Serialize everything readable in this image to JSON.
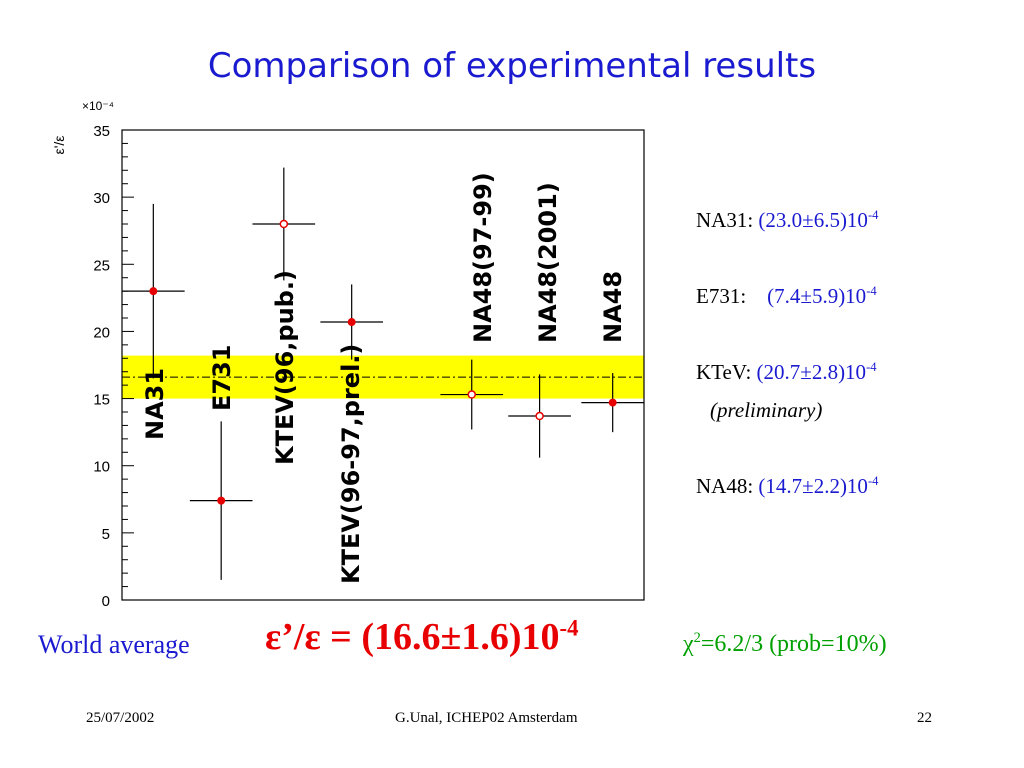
{
  "title": "Comparison of experimental results",
  "chart_data": {
    "type": "scatter",
    "ylabel": "ε'/ε",
    "y_scale_label": "×10⁻⁴",
    "ylim": [
      0,
      35
    ],
    "yticks": [
      0,
      5,
      10,
      15,
      20,
      25,
      30,
      35
    ],
    "xlim": [
      0,
      10
    ],
    "world_average_band": {
      "center": 16.6,
      "low": 15.0,
      "high": 18.2,
      "color": "#ffff00"
    },
    "points": [
      {
        "label": "NA31",
        "x": 0.6,
        "y": 23.0,
        "y_low": 16.5,
        "y_high": 29.5,
        "x_halfwidth": 0.6,
        "marker": "filled"
      },
      {
        "label": "E731",
        "x": 1.9,
        "y": 7.4,
        "y_low": 1.5,
        "y_high": 13.3,
        "x_halfwidth": 0.6,
        "marker": "filled"
      },
      {
        "label": "KTEV(96,pub.)",
        "x": 3.1,
        "y": 28.0,
        "y_low": 23.8,
        "y_high": 32.2,
        "x_halfwidth": 0.6,
        "marker": "open"
      },
      {
        "label": "KTEV(96-97,prel.)",
        "x": 4.4,
        "y": 20.7,
        "y_low": 17.9,
        "y_high": 23.5,
        "x_halfwidth": 0.6,
        "marker": "filled"
      },
      {
        "label": "NA48(97-99)",
        "x": 6.7,
        "y": 15.3,
        "y_low": 12.7,
        "y_high": 17.9,
        "x_halfwidth": 0.6,
        "marker": "open"
      },
      {
        "label": "NA48(2001)",
        "x": 8.0,
        "y": 13.7,
        "y_low": 10.6,
        "y_high": 16.8,
        "x_halfwidth": 0.6,
        "marker": "open"
      },
      {
        "label": "NA48",
        "x": 9.4,
        "y": 14.7,
        "y_low": 12.5,
        "y_high": 16.9,
        "x_halfwidth": 0.6,
        "marker": "filled"
      }
    ]
  },
  "results": [
    {
      "name": "NA31: ",
      "value": "(23.0±6.5)10",
      "exp": "-4"
    },
    {
      "name": "E731:    ",
      "value": "(7.4±5.9)10",
      "exp": "-4"
    },
    {
      "name": "KTeV: ",
      "value": "(20.7±2.8)10",
      "exp": "-4"
    },
    {
      "name": "NA48: ",
      "value": "(14.7±2.2)10",
      "exp": "-4"
    }
  ],
  "ktev_note": "(preliminary)",
  "world_average": {
    "label": "World average",
    "formula": "ε’/ε = (16.6±1.6)10",
    "exp": "-4",
    "chi_symbol": "χ",
    "chi_exp": "2",
    "chi_text": "=6.2/3 (prob=10%)"
  },
  "footer": {
    "date": "25/07/2002",
    "author": "G.Unal, ICHEP02 Amsterdam",
    "page": "22"
  }
}
